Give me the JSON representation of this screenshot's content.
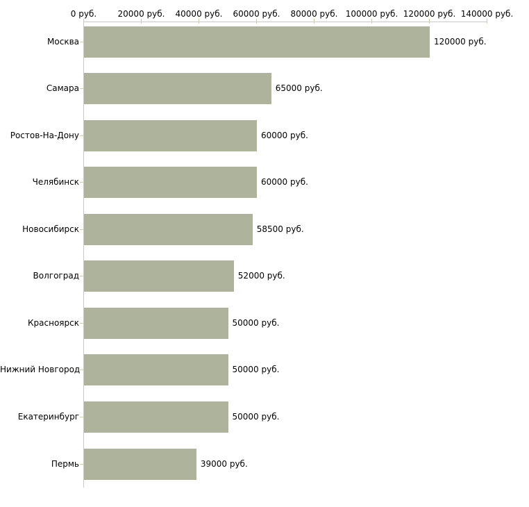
{
  "chart_data": {
    "type": "bar",
    "orientation": "horizontal",
    "title": "",
    "categories": [
      "Москва",
      "Самара",
      "Ростов-На-Дону",
      "Челябинск",
      "Новосибирск",
      "Волгоград",
      "Красноярск",
      "Нижний Новгород",
      "Екатеринбург",
      "Пермь"
    ],
    "values": [
      120000,
      65000,
      60000,
      60000,
      58500,
      52000,
      50000,
      50000,
      50000,
      39000
    ],
    "value_labels": [
      "120000 руб.",
      "65000 руб.",
      "60000 руб.",
      "60000 руб.",
      "58500 руб.",
      "52000 руб.",
      "50000 руб.",
      "50000 руб.",
      "50000 руб.",
      "39000 руб."
    ],
    "x_axis": {
      "position": "top",
      "min": 0,
      "max": 140000,
      "tick_interval": 20000,
      "tick_values": [
        0,
        20000,
        40000,
        60000,
        80000,
        100000,
        120000,
        140000
      ],
      "tick_labels": [
        "0 руб.",
        "20000 руб.",
        "40000 руб.",
        "60000 руб.",
        "80000 руб.",
        "100000 руб.",
        "120000 руб.",
        "140000 руб."
      ]
    },
    "unit_suffix": " руб.",
    "grid": false,
    "legend": false,
    "colors": {
      "bar": "#adb49b",
      "axis_line": "#c9c9c9",
      "tick": "#cfcfa4",
      "text": "#000000",
      "background": "#ffffff"
    }
  }
}
